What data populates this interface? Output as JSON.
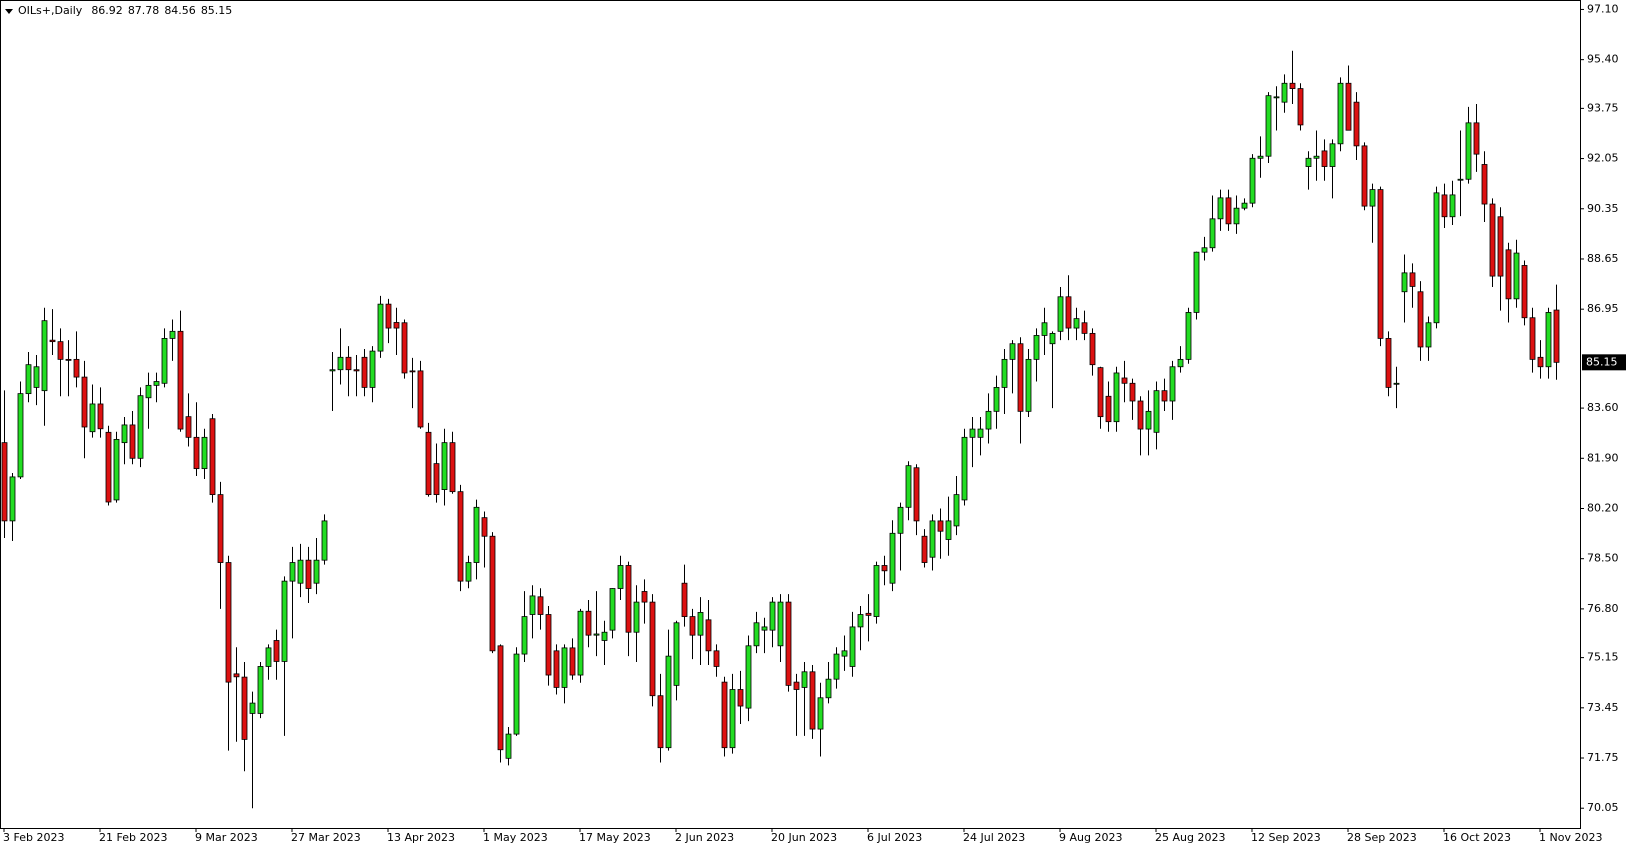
{
  "chart_data": {
    "type": "candlestick",
    "title": "OILs+,Daily",
    "up_color": "#22dd22",
    "down_color": "#dd1111",
    "outline": "#000000",
    "ylim": [
      69.38,
      97.42
    ],
    "yticks": [
      {
        "value": 97.1,
        "label": "97.10"
      },
      {
        "value": 95.4,
        "label": "95.40"
      },
      93.75,
      92.05,
      90.35,
      88.65,
      86.95,
      {
        "value": 83.6,
        "label": "83.60"
      },
      {
        "value": 81.9,
        "label": "81.90"
      },
      {
        "value": 80.2,
        "label": "80.20"
      },
      {
        "value": 78.5,
        "label": "78.50"
      },
      {
        "value": 76.8,
        "label": "76.80"
      },
      75.15,
      73.45,
      71.75,
      70.05
    ],
    "categories": [
      "3 Feb 2023",
      null,
      null,
      null,
      null,
      null,
      null,
      null,
      null,
      null,
      null,
      null,
      "21 Feb 2023",
      null,
      null,
      null,
      null,
      null,
      null,
      null,
      null,
      null,
      null,
      null,
      "9 Mar 2023",
      null,
      null,
      null,
      null,
      null,
      null,
      null,
      null,
      null,
      null,
      null,
      "27 Mar 2023",
      null,
      null,
      null,
      null,
      null,
      null,
      null,
      null,
      null,
      null,
      null,
      "13 Apr 2023",
      null,
      null,
      null,
      null,
      null,
      null,
      null,
      null,
      null,
      null,
      null,
      "1 May 2023",
      null,
      null,
      null,
      null,
      null,
      null,
      null,
      null,
      null,
      null,
      null,
      "17 May 2023",
      null,
      null,
      null,
      null,
      null,
      null,
      null,
      null,
      null,
      null,
      null,
      "2 Jun 2023",
      null,
      null,
      null,
      null,
      null,
      null,
      null,
      null,
      null,
      null,
      null,
      "20 Jun 2023",
      null,
      null,
      null,
      null,
      null,
      null,
      null,
      null,
      null,
      null,
      null,
      "6 Jul 2023",
      null,
      null,
      null,
      null,
      null,
      null,
      null,
      null,
      null,
      null,
      null,
      "24 Jul 2023",
      null,
      null,
      null,
      null,
      null,
      null,
      null,
      null,
      null,
      null,
      null,
      "9 Aug 2023",
      null,
      null,
      null,
      null,
      null,
      null,
      null,
      null,
      null,
      null,
      null,
      "25 Aug 2023",
      null,
      null,
      null,
      null,
      null,
      null,
      null,
      null,
      null,
      null,
      null,
      "12 Sep 2023",
      null,
      null,
      null,
      null,
      null,
      null,
      null,
      null,
      null,
      null,
      null,
      "28 Sep 2023",
      null,
      null,
      null,
      null,
      null,
      null,
      null,
      null,
      null,
      null,
      null,
      "16 Oct 2023",
      null,
      null,
      null,
      null,
      null,
      null,
      null,
      null,
      null,
      null,
      null,
      "1 Nov 2023",
      null,
      null
    ],
    "open": [
      82.43,
      79.78,
      81.27,
      84.09,
      84.3,
      84.19,
      85.9,
      85.85,
      85.25,
      85.25,
      84.65,
      82.8,
      83.74,
      82.78,
      80.49,
      82.43,
      83.03,
      81.9,
      83.95,
      84.37,
      84.44,
      85.96,
      86.2,
      83.31,
      82.61,
      81.55,
      83.24,
      80.67,
      78.37,
      74.6,
      74.49,
      73.26,
      73.26,
      74.85,
      75.73,
      75.02,
      77.74,
      77.67,
      78.45,
      77.67,
      78.45,
      84.86,
      84.9,
      85.32,
      84.9,
      85.32,
      84.3,
      85.53,
      87.12,
      86.5,
      86.49,
      84.86,
      84.86,
      82.78,
      81.72,
      80.84,
      82.43,
      80.77,
      77.74,
      78.37,
      79.89,
      79.26,
      75.55,
      71.74,
      72.56,
      75.27,
      76.61,
      77.21,
      76.61,
      75.38,
      74.14,
      75.48,
      74.56,
      76.72,
      75.91,
      75.73,
      76.08,
      77.49,
      78.27,
      76.01,
      77.39,
      77.03,
      73.86,
      72.1,
      74.21,
      77.67,
      76.54,
      75.91,
      76.43,
      75.38,
      74.32,
      72.1,
      74.07,
      73.44,
      75.55,
      76.08,
      76.08,
      75.55,
      77.03,
      74.32,
      74.14,
      74.67,
      72.73,
      73.79,
      74.42,
      75.2,
      74.85,
      76.19,
      76.65,
      76.54,
      78.27,
      77.67,
      79.36,
      80.24,
      81.58,
      79.26,
      78.55,
      79.78,
      79.15,
      79.61,
      80.49,
      82.61,
      82.61,
      82.89,
      83.49,
      84.3,
      85.25,
      85.78,
      83.49,
      85.25,
      86.06,
      85.78,
      86.2,
      87.37,
      86.31,
      86.49,
      86.13,
      84.97,
      84.0,
      83.14,
      84.62,
      84.44,
      83.84,
      82.89,
      82.78,
      84.19,
      83.84,
      85.0,
      85.25,
      86.84,
      88.88,
      89.03,
      90.01,
      90.72,
      89.84,
      90.37,
      90.54,
      92.06,
      92.13,
      94.14,
      93.96,
      94.6,
      94.42,
      91.78,
      92.06,
      92.31,
      91.78,
      92.55,
      94.6,
      93.96,
      92.48,
      90.44,
      91.0,
      85.96,
      84.44,
      87.54,
      88.18,
      87.54,
      85.67,
      86.49,
      90.82,
      90.08,
      91.35,
      91.35,
      93.26,
      91.85,
      90.51,
      90.08,
      88.96,
      87.3,
      88.43,
      86.66,
      85.32,
      85.0,
      86.92
    ],
    "high": [
      84.2,
      81.4,
      84.5,
      85.5,
      85.4,
      87.0,
      86.95,
      86.3,
      85.9,
      86.2,
      85.2,
      84.4,
      84.3,
      83.0,
      82.8,
      83.3,
      83.5,
      84.3,
      84.8,
      84.8,
      86.3,
      86.6,
      86.9,
      84.1,
      83.8,
      82.9,
      83.4,
      81.1,
      78.6,
      75.5,
      75.0,
      74.0,
      75.0,
      75.6,
      76.1,
      77.9,
      78.9,
      79.0,
      78.9,
      79.2,
      80.0,
      85.5,
      86.3,
      85.7,
      85.4,
      85.6,
      85.7,
      87.4,
      87.3,
      87.0,
      86.6,
      85.3,
      85.2,
      83.1,
      82.4,
      82.9,
      82.8,
      81.0,
      78.6,
      80.5,
      80.1,
      79.4,
      75.6,
      72.8,
      75.5,
      77.4,
      77.6,
      77.5,
      76.9,
      75.6,
      75.6,
      75.8,
      76.8,
      77.1,
      77.4,
      76.4,
      77.5,
      78.6,
      78.4,
      77.6,
      77.8,
      77.3,
      74.6,
      76.1,
      76.4,
      78.3,
      76.8,
      77.2,
      77.1,
      75.6,
      74.5,
      74.6,
      74.7,
      75.9,
      76.7,
      76.5,
      77.2,
      77.3,
      77.3,
      74.6,
      75.0,
      74.9,
      74.3,
      75.0,
      75.5,
      75.9,
      76.7,
      76.9,
      77.3,
      78.4,
      78.6,
      79.8,
      80.4,
      81.8,
      81.7,
      79.5,
      80.0,
      80.2,
      80.6,
      81.3,
      82.9,
      83.3,
      83.3,
      84.1,
      84.7,
      85.6,
      85.9,
      86.0,
      85.6,
      86.3,
      87.0,
      86.2,
      87.7,
      88.1,
      87.0,
      86.9,
      86.3,
      85.0,
      84.5,
      85.0,
      85.2,
      84.6,
      84.0,
      84.2,
      84.5,
      84.6,
      85.2,
      85.7,
      87.0,
      88.9,
      89.4,
      90.8,
      91.0,
      91.0,
      90.8,
      90.7,
      92.2,
      92.8,
      94.3,
      94.5,
      94.9,
      95.7,
      94.6,
      92.3,
      93.0,
      92.7,
      92.7,
      94.8,
      95.2,
      94.3,
      92.6,
      91.2,
      91.1,
      86.2,
      85.0,
      88.8,
      88.5,
      87.9,
      86.7,
      91.1,
      91.2,
      91.3,
      93.0,
      93.8,
      93.9,
      92.3,
      90.7,
      90.4,
      89.2,
      89.3,
      88.6,
      87.0,
      85.9,
      87.0,
      87.78
    ],
    "low": [
      79.2,
      79.1,
      81.2,
      83.8,
      83.7,
      83.0,
      85.4,
      84.0,
      84.0,
      84.3,
      81.9,
      82.6,
      82.6,
      80.3,
      80.4,
      81.7,
      81.7,
      81.6,
      82.9,
      83.8,
      84.3,
      85.2,
      82.8,
      82.3,
      81.3,
      81.2,
      80.4,
      76.8,
      72.0,
      72.3,
      71.3,
      70.05,
      73.1,
      74.4,
      74.4,
      72.5,
      75.8,
      77.2,
      77.0,
      77.3,
      78.3,
      83.5,
      84.4,
      84.0,
      84.0,
      84.0,
      83.8,
      85.3,
      85.8,
      85.4,
      84.6,
      83.6,
      82.9,
      80.6,
      80.4,
      80.3,
      80.7,
      77.4,
      77.5,
      77.8,
      78.2,
      75.3,
      71.6,
      71.5,
      72.5,
      75.0,
      75.8,
      76.1,
      74.2,
      73.9,
      73.6,
      74.4,
      74.3,
      75.5,
      75.2,
      74.9,
      75.8,
      77.1,
      75.2,
      75.0,
      76.3,
      73.5,
      71.6,
      72.0,
      73.7,
      76.2,
      75.1,
      74.9,
      74.9,
      74.5,
      71.8,
      71.9,
      72.9,
      73.0,
      75.3,
      75.3,
      75.5,
      75.0,
      74.0,
      72.5,
      72.5,
      72.4,
      71.8,
      73.6,
      74.1,
      74.7,
      74.5,
      75.4,
      75.7,
      76.3,
      77.6,
      77.4,
      78.1,
      79.8,
      79.3,
      78.2,
      78.1,
      78.5,
      78.6,
      79.3,
      80.3,
      81.6,
      82.0,
      82.4,
      82.9,
      83.4,
      84.1,
      82.4,
      83.3,
      84.5,
      85.4,
      83.6,
      85.9,
      85.9,
      85.9,
      85.9,
      84.7,
      82.9,
      82.8,
      82.8,
      83.8,
      83.2,
      82.0,
      82.0,
      82.2,
      83.5,
      83.2,
      84.8,
      85.1,
      86.6,
      88.6,
      88.9,
      89.6,
      89.6,
      89.5,
      90.3,
      90.4,
      91.4,
      91.9,
      93.0,
      93.6,
      93.9,
      93.0,
      91.0,
      91.3,
      91.3,
      90.7,
      92.3,
      93.0,
      92.0,
      90.3,
      89.2,
      85.7,
      84.0,
      83.6,
      86.5,
      87.0,
      85.2,
      85.2,
      86.3,
      89.7,
      89.8,
      90.1,
      91.2,
      91.6,
      89.9,
      87.7,
      86.9,
      86.5,
      87.0,
      86.4,
      84.8,
      84.6,
      84.6,
      84.56
    ],
    "close": [
      79.78,
      81.27,
      84.09,
      85.07,
      85.0,
      86.56,
      85.85,
      85.25,
      85.22,
      84.65,
      82.96,
      83.74,
      82.9,
      80.42,
      82.54,
      83.03,
      81.9,
      84.02,
      84.37,
      84.5,
      85.96,
      86.2,
      82.89,
      82.61,
      81.55,
      82.61,
      80.67,
      78.37,
      74.32,
      74.5,
      72.38,
      73.61,
      74.85,
      75.48,
      75.02,
      77.74,
      78.37,
      78.45,
      77.49,
      78.45,
      79.78,
      84.9,
      85.32,
      84.9,
      84.86,
      84.3,
      85.53,
      87.12,
      86.31,
      86.31,
      84.79,
      84.83,
      82.96,
      80.67,
      80.67,
      82.43,
      80.77,
      77.74,
      78.37,
      80.24,
      79.26,
      75.38,
      72.03,
      72.56,
      75.27,
      76.54,
      77.24,
      76.61,
      74.56,
      74.14,
      75.48,
      74.56,
      76.72,
      75.91,
      75.95,
      76.01,
      77.49,
      78.27,
      76.01,
      77.03,
      77.03,
      73.86,
      72.1,
      75.2,
      76.33,
      76.54,
      75.91,
      76.68,
      75.38,
      74.85,
      72.1,
      74.07,
      73.51,
      75.55,
      76.33,
      76.19,
      77.03,
      77.03,
      74.21,
      74.07,
      74.67,
      72.73,
      73.79,
      74.42,
      75.27,
      75.38,
      76.19,
      76.61,
      76.58,
      78.27,
      78.09,
      79.36,
      80.24,
      81.65,
      79.78,
      78.37,
      79.78,
      79.43,
      79.78,
      80.67,
      82.61,
      82.89,
      82.89,
      83.49,
      84.3,
      85.25,
      85.78,
      83.49,
      85.25,
      86.06,
      86.49,
      86.13,
      87.37,
      86.31,
      86.63,
      86.13,
      85.07,
      83.31,
      83.14,
      84.79,
      84.44,
      83.84,
      82.89,
      83.49,
      84.19,
      83.84,
      85.0,
      85.25,
      86.84,
      88.88,
      89.03,
      90.01,
      90.72,
      89.84,
      90.37,
      90.54,
      92.06,
      92.13,
      94.18,
      94.14,
      94.6,
      94.42,
      93.19,
      92.06,
      92.13,
      91.78,
      92.55,
      94.6,
      93.01,
      92.48,
      90.44,
      91.0,
      85.96,
      84.3,
      84.44,
      88.18,
      87.72,
      85.67,
      86.49,
      90.89,
      90.08,
      90.82,
      91.35,
      93.26,
      92.2,
      90.51,
      88.07,
      88.07,
      87.3,
      88.85,
      86.66,
      85.25,
      85.0,
      86.84,
      85.15
    ]
  }
}
